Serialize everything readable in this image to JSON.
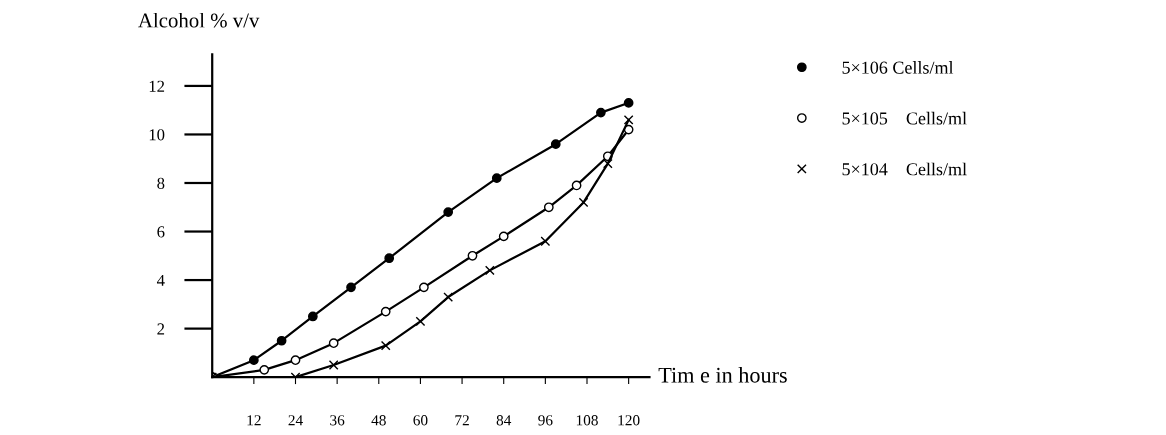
{
  "chart_data": {
    "type": "line",
    "xlabel": "Tim e in hours",
    "ylabel": "Alcohol % v/v",
    "xlim": [
      0,
      126
    ],
    "ylim": [
      0,
      13.3
    ],
    "xticks": [
      12,
      24,
      36,
      48,
      60,
      72,
      84,
      96,
      108,
      120
    ],
    "yticks": [
      2,
      4,
      6,
      8,
      10,
      12
    ],
    "legend": "right",
    "grid": false,
    "series": [
      {
        "name": "5×106 Cells/ml",
        "color": "#000000",
        "marker": "circle",
        "x": [
          0,
          12,
          20,
          29,
          40,
          51,
          68,
          82,
          99,
          112,
          120
        ],
        "values": [
          0,
          0.7,
          1.5,
          2.5,
          3.7,
          4.9,
          6.8,
          8.2,
          9.6,
          10.9,
          11.3
        ]
      },
      {
        "name": "5×105    Cells/ml",
        "color": "#000000",
        "marker": "circle",
        "x": [
          0,
          15,
          24,
          35,
          50,
          61,
          75,
          84,
          97,
          105,
          114,
          120
        ],
        "values": [
          0,
          0.3,
          0.7,
          1.4,
          2.7,
          3.7,
          5.0,
          5.8,
          7.0,
          7.9,
          9.1,
          10.2
        ]
      },
      {
        "name": "5×104    Cells/ml",
        "color": "#000000",
        "marker": "cross",
        "x": [
          0,
          24,
          35,
          50,
          60,
          68,
          80,
          96,
          107,
          114,
          120
        ],
        "values": [
          0,
          0,
          0.5,
          1.3,
          2.3,
          3.3,
          4.4,
          5.6,
          7.2,
          8.8,
          10.6
        ]
      }
    ]
  }
}
